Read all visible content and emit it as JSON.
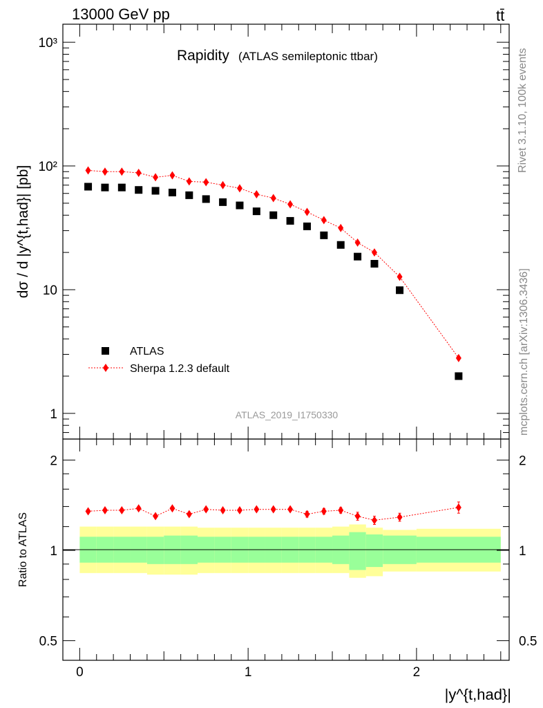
{
  "header": {
    "energy_label": "13000 GeV pp",
    "process_label": "tt̄"
  },
  "side_labels": {
    "rivet": "Rivet 3.1.10,  100k events",
    "mcplots": "mcplots.cern.ch [arXiv:1306.3436]"
  },
  "chart_data": [
    {
      "type": "scatter",
      "panel": "main",
      "title": "Rapidity",
      "subtitle": "(ATLAS semileptonic ttbar)",
      "watermark": "ATLAS_2019_I1750330",
      "ylabel": "dσ / d |y^{t,had}| [pb]",
      "yscale": "log",
      "ylim": [
        0.62,
        1400
      ],
      "xlim": [
        -0.1,
        2.55
      ],
      "y_tick_labels": [
        "1",
        "10",
        "10²",
        "10³"
      ],
      "legend_position": "bottom-left",
      "x": [
        0.05,
        0.15,
        0.25,
        0.35,
        0.45,
        0.55,
        0.65,
        0.75,
        0.85,
        0.95,
        1.05,
        1.15,
        1.25,
        1.35,
        1.45,
        1.55,
        1.65,
        1.75,
        1.9,
        2.25
      ],
      "series": [
        {
          "name": "ATLAS",
          "marker": "square",
          "color": "#000000",
          "values": [
            68,
            67,
            67,
            64,
            63,
            61,
            58,
            54,
            51,
            48,
            43,
            40,
            36,
            32.5,
            27.5,
            23,
            18.5,
            16.2,
            9.9,
            2.0
          ]
        },
        {
          "name": "Sherpa 1.2.3 default",
          "marker": "diamond",
          "line": "dotted",
          "color": "#ff0000",
          "values": [
            92,
            90,
            90,
            88,
            81,
            84,
            75,
            74,
            70,
            66,
            59,
            55,
            49,
            42.5,
            36.5,
            31.5,
            24,
            20,
            12.7,
            2.8
          ]
        }
      ]
    },
    {
      "type": "scatter",
      "panel": "ratio",
      "ylabel": "Ratio to ATLAS",
      "xlabel": "|y^{t,had}|",
      "ylim": [
        0.43,
        2.35
      ],
      "xlim": [
        -0.1,
        2.55
      ],
      "y_tick_labels": [
        "0.5",
        "1",
        "2"
      ],
      "x_tick_labels": [
        "0",
        "1",
        "2"
      ],
      "reference": 1.0,
      "bins": [
        0,
        0.1,
        0.2,
        0.3,
        0.4,
        0.5,
        0.6,
        0.7,
        0.8,
        0.9,
        1.0,
        1.1,
        1.2,
        1.3,
        1.4,
        1.5,
        1.6,
        1.7,
        1.8,
        2.0,
        2.5
      ],
      "band_inner": [
        [
          0.91,
          1.11
        ],
        [
          0.91,
          1.11
        ],
        [
          0.91,
          1.11
        ],
        [
          0.91,
          1.11
        ],
        [
          0.9,
          1.11
        ],
        [
          0.9,
          1.12
        ],
        [
          0.9,
          1.12
        ],
        [
          0.91,
          1.11
        ],
        [
          0.91,
          1.11
        ],
        [
          0.91,
          1.11
        ],
        [
          0.91,
          1.11
        ],
        [
          0.91,
          1.11
        ],
        [
          0.91,
          1.11
        ],
        [
          0.91,
          1.11
        ],
        [
          0.91,
          1.11
        ],
        [
          0.9,
          1.12
        ],
        [
          0.86,
          1.15
        ],
        [
          0.88,
          1.13
        ],
        [
          0.9,
          1.12
        ],
        [
          0.91,
          1.11
        ]
      ],
      "band_outer": [
        [
          0.84,
          1.2
        ],
        [
          0.84,
          1.2
        ],
        [
          0.84,
          1.2
        ],
        [
          0.84,
          1.2
        ],
        [
          0.83,
          1.2
        ],
        [
          0.83,
          1.2
        ],
        [
          0.83,
          1.2
        ],
        [
          0.84,
          1.19
        ],
        [
          0.84,
          1.19
        ],
        [
          0.84,
          1.19
        ],
        [
          0.84,
          1.19
        ],
        [
          0.84,
          1.19
        ],
        [
          0.84,
          1.19
        ],
        [
          0.84,
          1.19
        ],
        [
          0.84,
          1.19
        ],
        [
          0.84,
          1.2
        ],
        [
          0.81,
          1.22
        ],
        [
          0.82,
          1.19
        ],
        [
          0.85,
          1.17
        ],
        [
          0.85,
          1.18
        ]
      ],
      "band_colors": {
        "inner": "#99ff99",
        "outer": "#ffff99"
      },
      "x": [
        0.05,
        0.15,
        0.25,
        0.35,
        0.45,
        0.55,
        0.65,
        0.75,
        0.85,
        0.95,
        1.05,
        1.15,
        1.25,
        1.35,
        1.45,
        1.55,
        1.65,
        1.75,
        1.9,
        2.25
      ],
      "series": [
        {
          "name": "Sherpa 1.2.3 default",
          "color": "#ff0000",
          "values": [
            1.35,
            1.36,
            1.36,
            1.38,
            1.3,
            1.38,
            1.32,
            1.37,
            1.36,
            1.36,
            1.37,
            1.37,
            1.37,
            1.32,
            1.35,
            1.36,
            1.3,
            1.26,
            1.29,
            1.39
          ],
          "errors": [
            0.02,
            0.02,
            0.02,
            0.02,
            0.02,
            0.02,
            0.02,
            0.02,
            0.02,
            0.02,
            0.02,
            0.02,
            0.02,
            0.03,
            0.03,
            0.03,
            0.04,
            0.04,
            0.04,
            0.06
          ]
        }
      ]
    }
  ]
}
